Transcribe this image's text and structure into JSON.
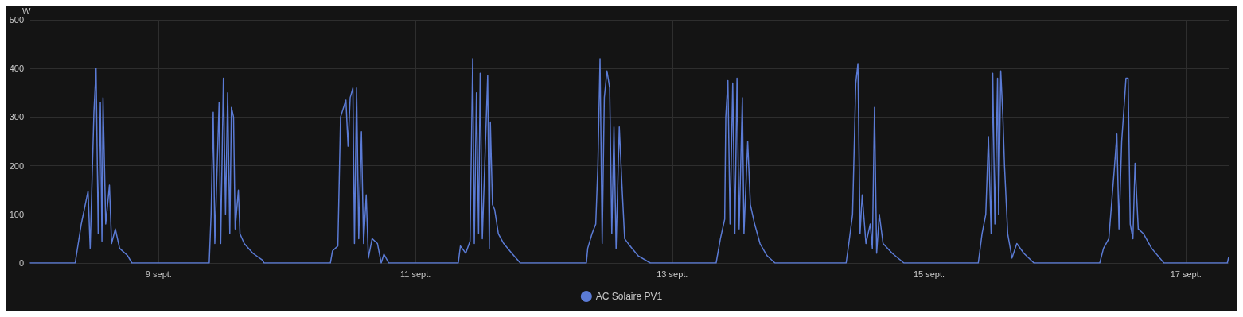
{
  "chart_data": {
    "type": "line",
    "ylabel": "W",
    "xlim": [
      "--09-08T00:00",
      "--09-17T08:00"
    ],
    "xticks": [
      {
        "value": "--09-09",
        "label": "9 sept."
      },
      {
        "value": "--09-11",
        "label": "11 sept."
      },
      {
        "value": "--09-13",
        "label": "13 sept."
      },
      {
        "value": "--09-15",
        "label": "15 sept."
      },
      {
        "value": "--09-17",
        "label": "17 sept."
      }
    ],
    "ylim": [
      0,
      500
    ],
    "yticks": [
      0,
      100,
      200,
      300,
      400,
      500
    ],
    "grid": true,
    "legend": "bottom",
    "marker": "none",
    "line_style": "solid",
    "series": [
      {
        "name": "AC Solaire PV1",
        "color": "#5b7bd5",
        "x": [
          "--09-08T00:00",
          "--09-08T08:24",
          "--09-08T09:30",
          "--09-08T10:48",
          "--09-08T11:12",
          "--09-08T11:54",
          "--09-08T12:18",
          "--09-08T12:42",
          "--09-08T13:06",
          "--09-08T13:24",
          "--09-08T13:36",
          "--09-08T14:06",
          "--09-08T14:48",
          "--09-08T15:12",
          "--09-08T15:54",
          "--09-08T16:42",
          "--09-08T18:12",
          "--09-08T19:00",
          "--09-09T09:27",
          "--09-09T09:48",
          "--09-09T10:12",
          "--09-09T10:30",
          "--09-09T11:18",
          "--09-09T11:36",
          "--09-09T12:06",
          "--09-09T12:30",
          "--09-09T12:54",
          "--09-09T13:18",
          "--09-09T13:36",
          "--09-09T14:00",
          "--09-09T14:18",
          "--09-09T14:54",
          "--09-09T15:12",
          "--09-09T16:00",
          "--09-09T17:36",
          "--09-09T19:30",
          "--09-09T19:42",
          "--09-10T08:06",
          "--09-10T08:30",
          "--09-10T09:30",
          "--09-10T10:00",
          "--09-10T11:00",
          "--09-10T11:24",
          "--09-10T11:48",
          "--09-10T12:18",
          "--09-10T12:36",
          "--09-10T13:00",
          "--09-10T13:24",
          "--09-10T13:54",
          "--09-10T14:18",
          "--09-10T14:48",
          "--09-10T15:12",
          "--09-10T15:54",
          "--09-10T16:54",
          "--09-10T17:36",
          "--09-10T18:06",
          "--09-10T19:00",
          "--09-11T08:00",
          "--09-11T08:24",
          "--09-11T09:24",
          "--09-11T10:12",
          "--09-11T10:42",
          "--09-11T11:00",
          "--09-11T11:24",
          "--09-11T11:48",
          "--09-11T12:06",
          "--09-11T12:30",
          "--09-11T13:30",
          "--09-11T13:48",
          "--09-11T14:00",
          "--09-11T14:24",
          "--09-11T14:48",
          "--09-11T15:30",
          "--09-11T16:30",
          "--09-11T18:00",
          "--09-11T19:36",
          "--09-12T07:57",
          "--09-12T08:12",
          "--09-12T09:00",
          "--09-12T09:42",
          "--09-12T10:06",
          "--09-12T10:30",
          "--09-12T10:54",
          "--09-12T11:18",
          "--09-12T11:48",
          "--09-12T12:18",
          "--09-12T12:42",
          "--09-12T13:06",
          "--09-12T13:30",
          "--09-12T14:06",
          "--09-12T14:36",
          "--09-12T15:06",
          "--09-12T16:06",
          "--09-12T17:36",
          "--09-12T19:54",
          "--09-13T08:12",
          "--09-13T09:00",
          "--09-13T09:48",
          "--09-13T10:00",
          "--09-13T10:24",
          "--09-13T10:48",
          "--09-13T11:18",
          "--09-13T11:42",
          "--09-13T12:06",
          "--09-13T12:30",
          "--09-13T13:06",
          "--09-13T13:24",
          "--09-13T14:06",
          "--09-13T14:36",
          "--09-13T15:24",
          "--09-13T16:24",
          "--09-13T17:42",
          "--09-13T19:12",
          "--09-14T08:30",
          "--09-14T09:00",
          "--09-14T09:42",
          "--09-14T10:18",
          "--09-14T10:42",
          "--09-14T11:06",
          "--09-14T11:30",
          "--09-14T12:12",
          "--09-14T13:00",
          "--09-14T13:24",
          "--09-14T13:48",
          "--09-14T14:12",
          "--09-14T14:42",
          "--09-14T15:24",
          "--09-14T17:06",
          "--09-14T19:18",
          "--09-15T09:12",
          "--09-15T09:54",
          "--09-15T10:36",
          "--09-15T11:06",
          "--09-15T11:36",
          "--09-15T11:54",
          "--09-15T12:18",
          "--09-15T12:48",
          "--09-15T13:00",
          "--09-15T13:24",
          "--09-15T13:48",
          "--09-15T14:06",
          "--09-15T14:42",
          "--09-15T15:30",
          "--09-15T16:24",
          "--09-15T17:42",
          "--09-15T19:36",
          "--09-16T07:54",
          "--09-16T08:36",
          "--09-16T09:36",
          "--09-16T10:36",
          "--09-16T11:06",
          "--09-16T11:30",
          "--09-16T12:00",
          "--09-16T12:30",
          "--09-16T12:48",
          "--09-16T13:12",
          "--09-16T13:36",
          "--09-16T14:06",
          "--09-16T14:30",
          "--09-16T15:06",
          "--09-16T16:06",
          "--09-16T17:36",
          "--09-16T19:54",
          "--09-17T07:45",
          "--09-17T08:00"
        ],
        "values": [
          0,
          0,
          78,
          148,
          30,
          310,
          400,
          60,
          330,
          45,
          340,
          80,
          160,
          40,
          70,
          30,
          15,
          0,
          0,
          100,
          310,
          40,
          330,
          40,
          380,
          100,
          350,
          60,
          320,
          300,
          70,
          150,
          60,
          40,
          20,
          5,
          0,
          0,
          25,
          35,
          300,
          335,
          240,
          340,
          360,
          40,
          360,
          50,
          270,
          40,
          140,
          10,
          50,
          40,
          0,
          18,
          0,
          0,
          35,
          20,
          45,
          420,
          40,
          350,
          60,
          390,
          50,
          385,
          30,
          290,
          120,
          110,
          60,
          40,
          20,
          0,
          0,
          30,
          60,
          80,
          200,
          420,
          40,
          340,
          395,
          360,
          60,
          280,
          30,
          280,
          160,
          50,
          35,
          15,
          0,
          0,
          50,
          90,
          300,
          375,
          80,
          370,
          60,
          380,
          70,
          340,
          60,
          250,
          120,
          80,
          40,
          15,
          0,
          0,
          40,
          100,
          370,
          410,
          60,
          140,
          40,
          80,
          30,
          320,
          20,
          100,
          40,
          20,
          0,
          0,
          60,
          100,
          260,
          60,
          390,
          80,
          380,
          100,
          395,
          300,
          200,
          60,
          10,
          40,
          20,
          0,
          0,
          30,
          50,
          190,
          265,
          70,
          250,
          330,
          380,
          380,
          80,
          50,
          205,
          70,
          60,
          30,
          0,
          0,
          12
        ]
      }
    ]
  }
}
